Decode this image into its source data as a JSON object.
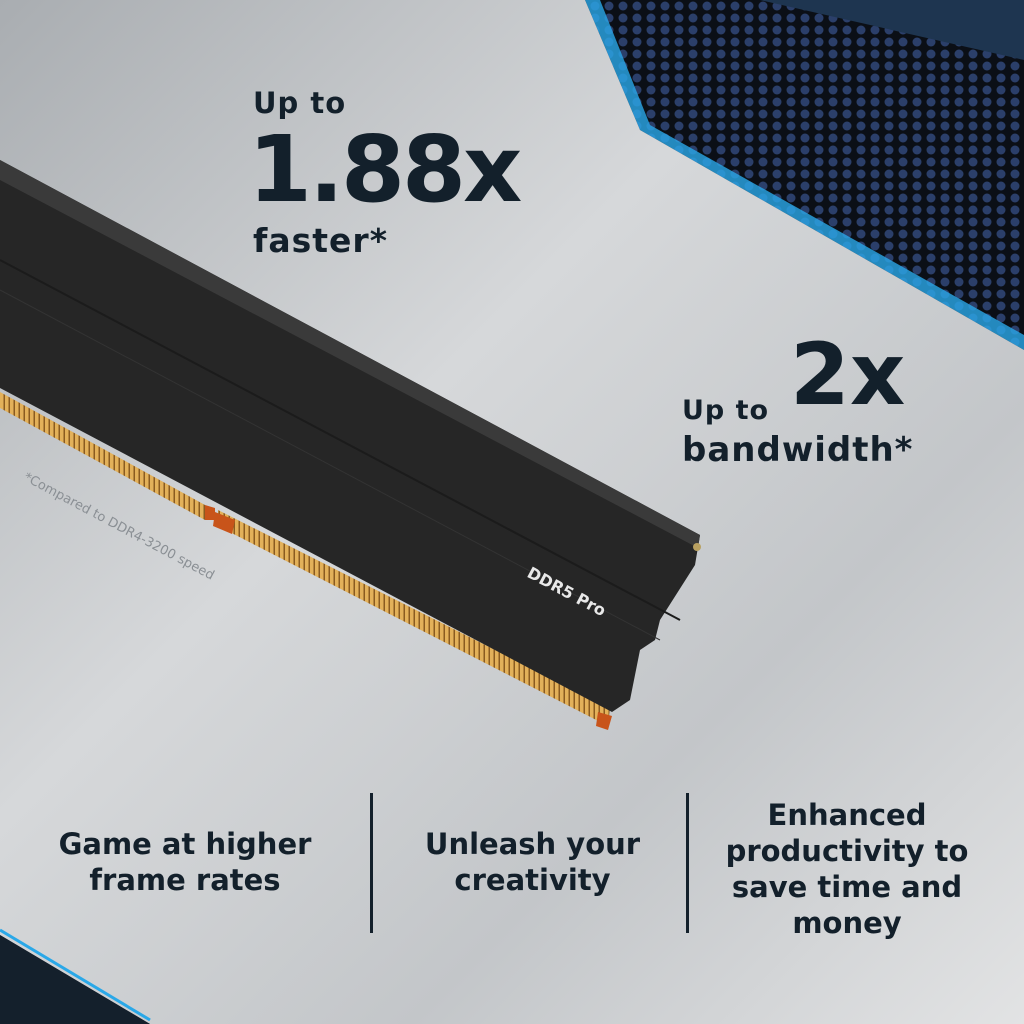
{
  "headline_1": {
    "prefix": "Up to",
    "value": "1.88x",
    "suffix": "faster*"
  },
  "headline_2": {
    "prefix": "Up to",
    "value": "2x",
    "suffix": "bandwidth*"
  },
  "footnote": "*Compared to DDR4-3200 speed",
  "product_label": "DDR5 Pro",
  "features": [
    {
      "line1": "Game at higher",
      "line2": "frame rates"
    },
    {
      "line1": "Unleash your",
      "line2": "creativity"
    },
    {
      "line1": "Enhanced",
      "line2": "productivity to",
      "line3": "save time and",
      "line4": "money"
    }
  ],
  "colors": {
    "text": "#13202b",
    "accent_blue": "#2aa8e8",
    "heatspreader": "#262626",
    "contacts": "#d9a24a"
  }
}
